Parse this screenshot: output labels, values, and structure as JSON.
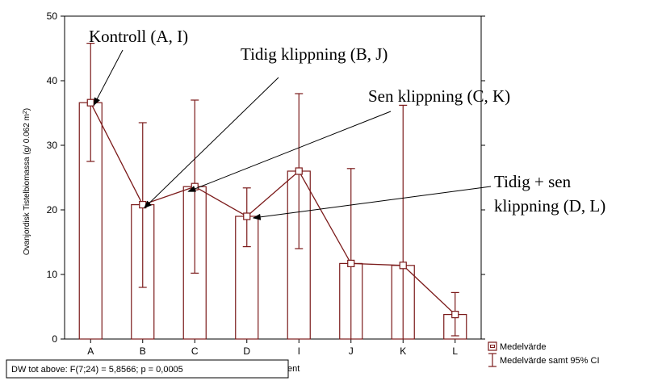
{
  "chart_data": {
    "type": "bar",
    "categories": [
      "A",
      "B",
      "C",
      "D",
      "I",
      "J",
      "K",
      "L"
    ],
    "values": [
      36.6,
      20.8,
      23.6,
      19.0,
      26.0,
      11.7,
      11.4,
      3.8
    ],
    "ci_low": [
      27.5,
      8.0,
      10.2,
      14.3,
      14.0,
      0.0,
      0.0,
      0.5
    ],
    "ci_high": [
      45.8,
      33.5,
      37.0,
      23.4,
      38.0,
      26.4,
      36.2,
      7.2
    ],
    "ylabel_main": "Ovanjordisk Tistelbiomassa (g/ 0.062 m",
    "ylabel_sup": "2",
    "ylabel_end": ")",
    "ylim": [
      0,
      50
    ],
    "yticks": [
      "0",
      "10",
      "20",
      "30",
      "40",
      "50"
    ],
    "grid": false,
    "xlabel_fragment": "ent",
    "legend": {
      "position": "bottom-right",
      "mean_label": "Medelvärde",
      "ci_label": "Medelvärde samt 95% CI"
    },
    "stat_box": "DW tot above:   F(7;24) = 5,8566; p = 0,0005",
    "annotations": [
      {
        "lines": [
          "Kontroll (A, I)"
        ],
        "target": "A"
      },
      {
        "lines": [
          "Tidig klippning (B, J)"
        ],
        "target": "B"
      },
      {
        "lines": [
          "Sen klippning (C, K)"
        ],
        "target": "C"
      },
      {
        "lines": [
          "Tidig + sen",
          "klippning (D, L)"
        ],
        "target": "D"
      }
    ],
    "colors": {
      "series": "#7b1a1a",
      "axis": "#000000",
      "background": "#ffffff"
    }
  }
}
